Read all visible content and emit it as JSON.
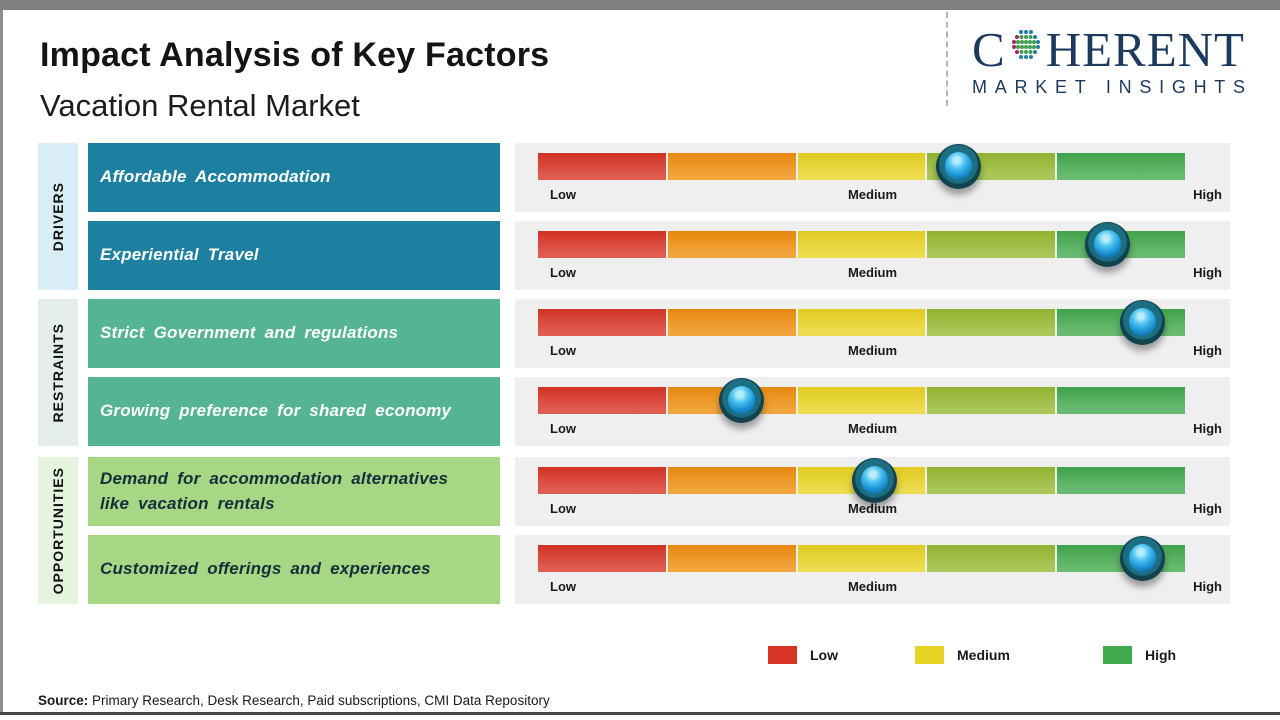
{
  "page": {
    "title": "Impact Analysis of Key Factors",
    "subtitle": "Vacation Rental Market",
    "source_label": "Source:",
    "source_text": "Primary Research, Desk Research, Paid subscriptions, CMI Data Repository"
  },
  "logo": {
    "brand_first": "C",
    "brand_rest": "HERENT",
    "tagline": "MARKET INSIGHTS",
    "brand_color": "#1c3a5e",
    "globe_dot_colors": {
      "teal": "#1f7fa3",
      "green": "#3f9e4f",
      "magenta": "#9c2d62"
    }
  },
  "scale": {
    "low": "Low",
    "medium": "Medium",
    "high": "High"
  },
  "bar_segment_colors": [
    "#d93425",
    "#ef8d0d",
    "#e8d322",
    "#95b92f",
    "#43a94e"
  ],
  "sections": [
    {
      "name": "DRIVERS",
      "strip_color": "#d9edf7",
      "box_color": "#1e80a0",
      "text_color": "#ffffff",
      "factors": [
        {
          "label": "Affordable Accommodation",
          "marker_pct": 65
        },
        {
          "label": "Experiential Travel",
          "marker_pct": 88
        }
      ]
    },
    {
      "name": "RESTRAINTS",
      "strip_color": "#e4ede9",
      "box_color": "#55b491",
      "text_color": "#ffffff",
      "factors": [
        {
          "label": "Strict Government and regulations",
          "marker_pct": 93.5
        },
        {
          "label": "Growing preference for shared economy",
          "marker_pct": 31.5
        }
      ]
    },
    {
      "name": "OPPORTUNITIES",
      "strip_color": "#e6f4df",
      "box_color": "#a5d784",
      "text_color": "#132f39",
      "factors": [
        {
          "label": "Demand for accommodation alternatives like vacation rentals",
          "marker_pct": 52
        },
        {
          "label": "Customized offerings and experiences",
          "marker_pct": 93.5
        }
      ]
    }
  ],
  "legend": [
    {
      "label": "Low",
      "color": "#d93425"
    },
    {
      "label": "Medium",
      "color": "#e8d322"
    },
    {
      "label": "High",
      "color": "#43a94e"
    }
  ],
  "chart_data": {
    "type": "scatter",
    "title": "Impact Analysis of Key Factors",
    "subtitle": "Vacation Rental Market",
    "x_axis": {
      "labels": [
        "Low",
        "Medium",
        "High"
      ],
      "range": [
        0,
        1
      ],
      "grid": false
    },
    "legend_entries": [
      "Low",
      "Medium",
      "High"
    ],
    "legend_position": "bottom-right",
    "series": [
      {
        "category": "Drivers",
        "factor": "Affordable Accommodation",
        "impact_position": 0.65,
        "impact_level": "Medium-High"
      },
      {
        "category": "Drivers",
        "factor": "Experiential Travel",
        "impact_position": 0.88,
        "impact_level": "High"
      },
      {
        "category": "Restraints",
        "factor": "Strict Government and regulations",
        "impact_position": 0.94,
        "impact_level": "High"
      },
      {
        "category": "Restraints",
        "factor": "Growing preference for shared economy",
        "impact_position": 0.31,
        "impact_level": "Low-Medium"
      },
      {
        "category": "Opportunities",
        "factor": "Demand for accommodation alternatives like vacation rentals",
        "impact_position": 0.52,
        "impact_level": "Medium"
      },
      {
        "category": "Opportunities",
        "factor": "Customized offerings and experiences",
        "impact_position": 0.94,
        "impact_level": "High"
      }
    ]
  }
}
